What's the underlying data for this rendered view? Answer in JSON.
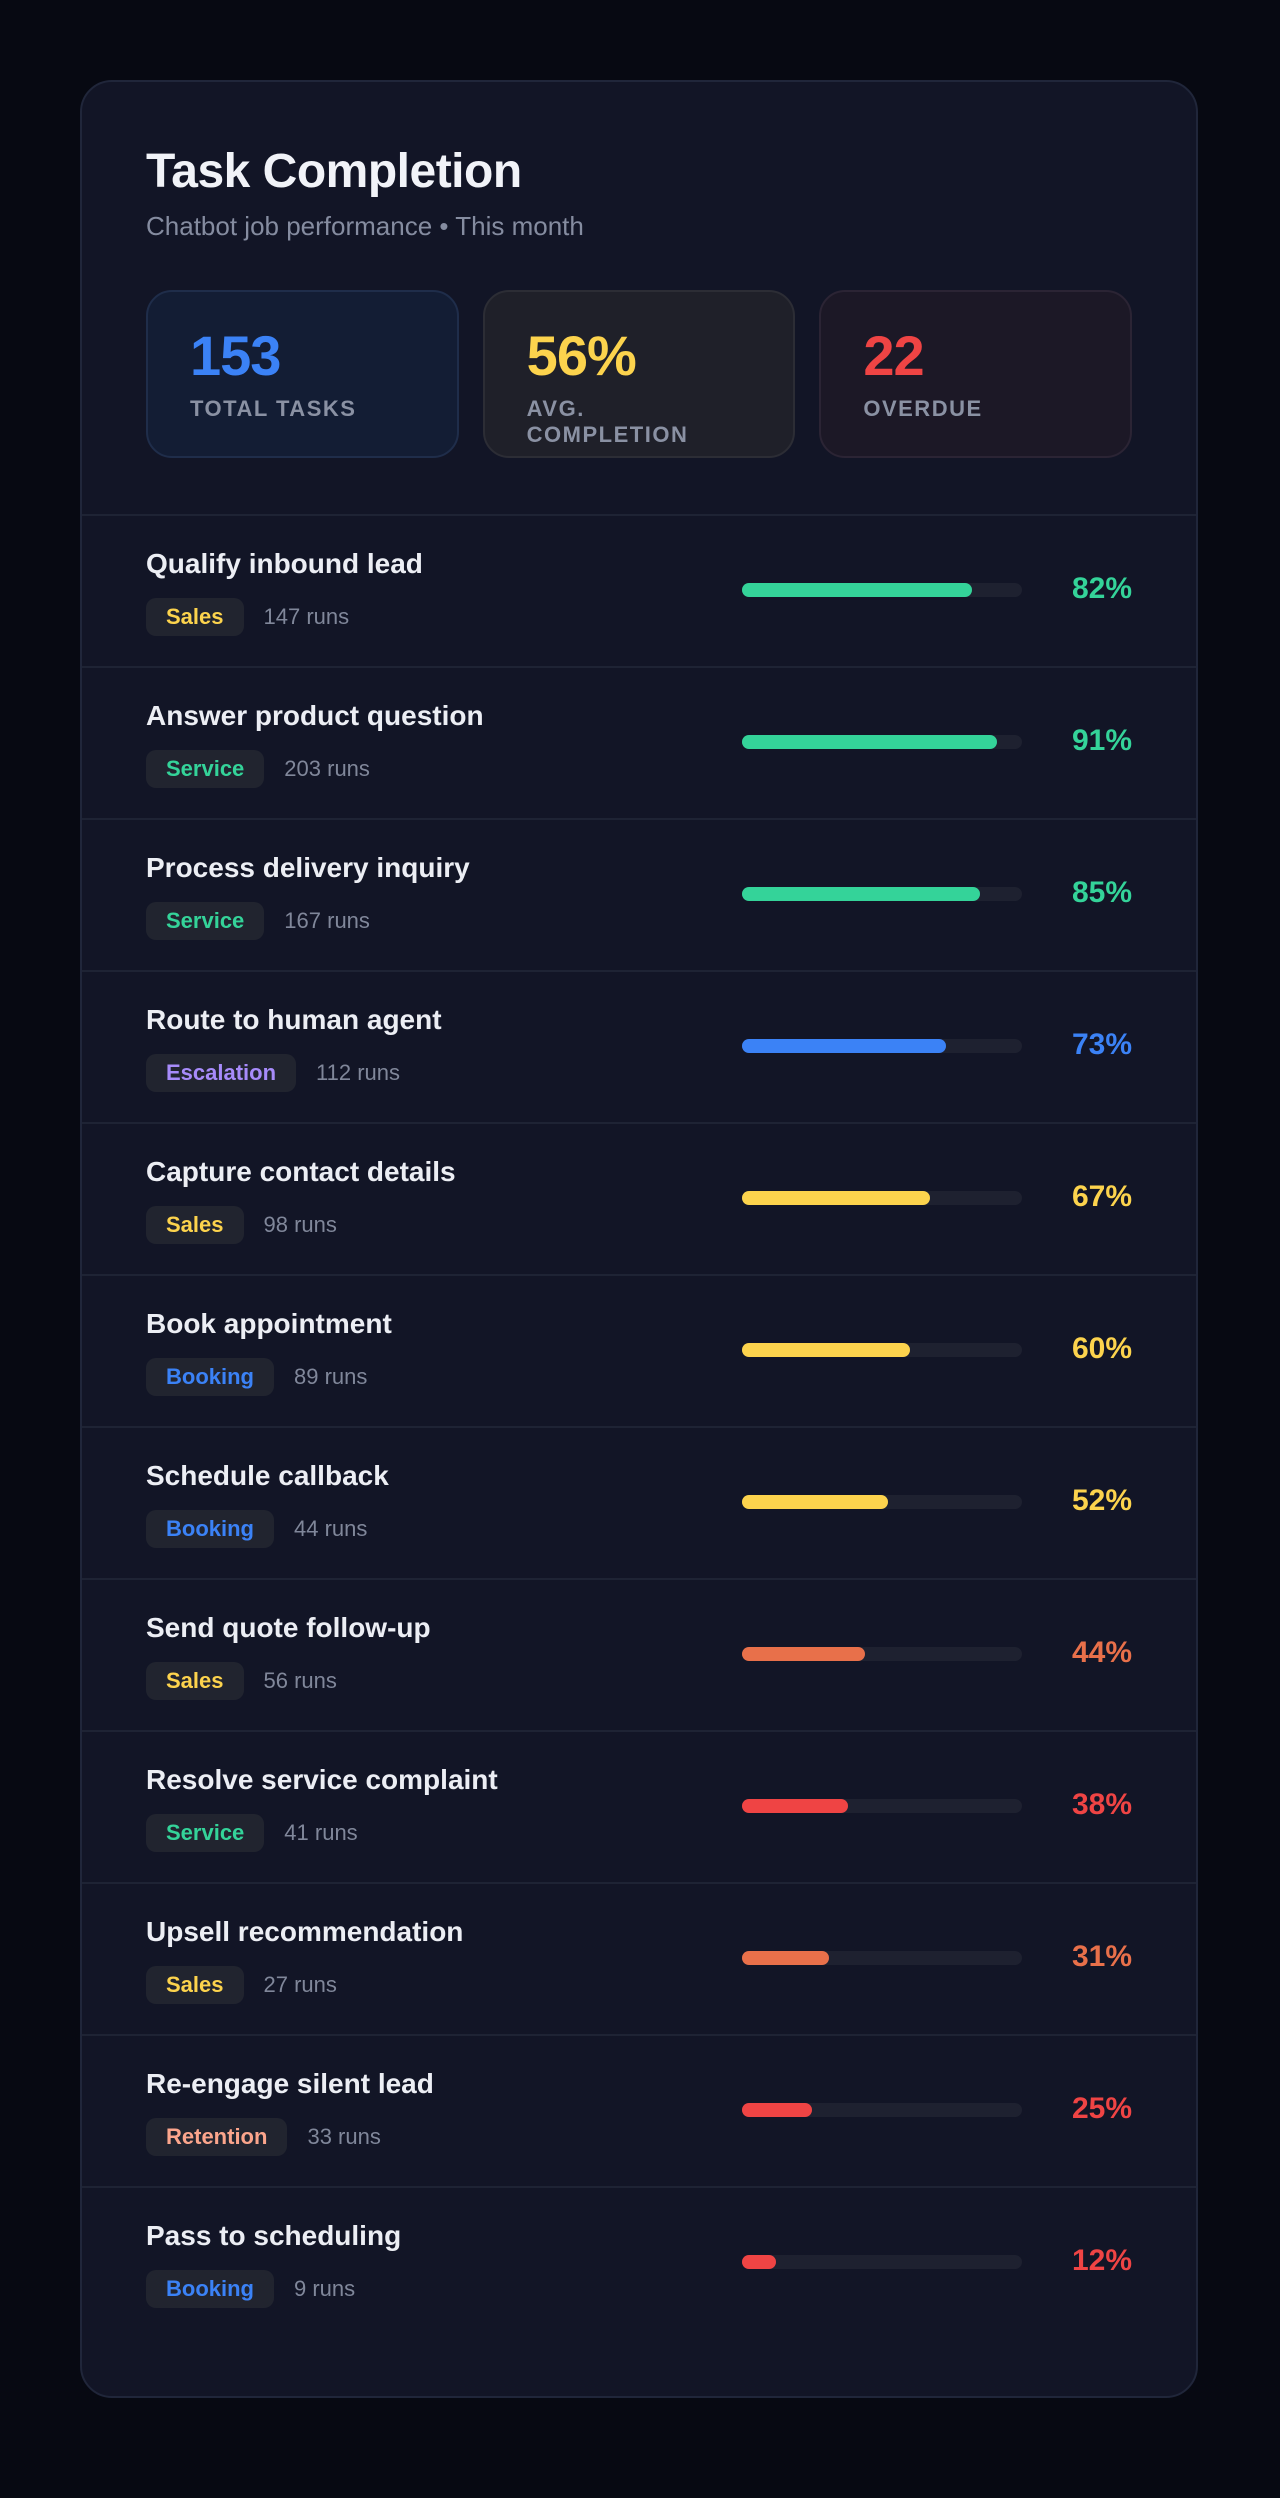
{
  "header": {
    "title": "Task Completion",
    "subtitle": "Chatbot job performance • This month"
  },
  "stats": [
    {
      "value": "153",
      "label": "TOTAL TASKS",
      "color": "#3b82f6"
    },
    {
      "value": "56%",
      "label": "AVG. COMPLETION",
      "color": "#fcd34d"
    },
    {
      "value": "22",
      "label": "OVERDUE",
      "color": "#ef4444"
    }
  ],
  "colors": {
    "green": "#34d399",
    "blue": "#3b82f6",
    "yellow": "#fcd34d",
    "orange": "#e8704a",
    "red": "#ef4444",
    "purple": "#a78bfa",
    "salmon": "#fba58c"
  },
  "tag_colors": {
    "Sales": "#fcd34d",
    "Service": "#34d399",
    "Escalation": "#a78bfa",
    "Booking": "#3b82f6",
    "Retention": "#fba58c"
  },
  "tasks": [
    {
      "name": "Qualify inbound lead",
      "tag": "Sales",
      "runs": "147 runs",
      "percent": 82,
      "label": "82%",
      "color": "#34d399"
    },
    {
      "name": "Answer product question",
      "tag": "Service",
      "runs": "203 runs",
      "percent": 91,
      "label": "91%",
      "color": "#34d399"
    },
    {
      "name": "Process delivery inquiry",
      "tag": "Service",
      "runs": "167 runs",
      "percent": 85,
      "label": "85%",
      "color": "#34d399"
    },
    {
      "name": "Route to human agent",
      "tag": "Escalation",
      "runs": "112 runs",
      "percent": 73,
      "label": "73%",
      "color": "#3b82f6"
    },
    {
      "name": "Capture contact details",
      "tag": "Sales",
      "runs": "98 runs",
      "percent": 67,
      "label": "67%",
      "color": "#fcd34d"
    },
    {
      "name": "Book appointment",
      "tag": "Booking",
      "runs": "89 runs",
      "percent": 60,
      "label": "60%",
      "color": "#fcd34d"
    },
    {
      "name": "Schedule callback",
      "tag": "Booking",
      "runs": "44 runs",
      "percent": 52,
      "label": "52%",
      "color": "#fcd34d"
    },
    {
      "name": "Send quote follow-up",
      "tag": "Sales",
      "runs": "56 runs",
      "percent": 44,
      "label": "44%",
      "color": "#e8704a"
    },
    {
      "name": "Resolve service complaint",
      "tag": "Service",
      "runs": "41 runs",
      "percent": 38,
      "label": "38%",
      "color": "#ef4444"
    },
    {
      "name": "Upsell recommendation",
      "tag": "Sales",
      "runs": "27 runs",
      "percent": 31,
      "label": "31%",
      "color": "#e8704a"
    },
    {
      "name": "Re-engage silent lead",
      "tag": "Retention",
      "runs": "33 runs",
      "percent": 25,
      "label": "25%",
      "color": "#ef4444"
    },
    {
      "name": "Pass to scheduling",
      "tag": "Booking",
      "runs": "9 runs",
      "percent": 12,
      "label": "12%",
      "color": "#ef4444"
    }
  ]
}
